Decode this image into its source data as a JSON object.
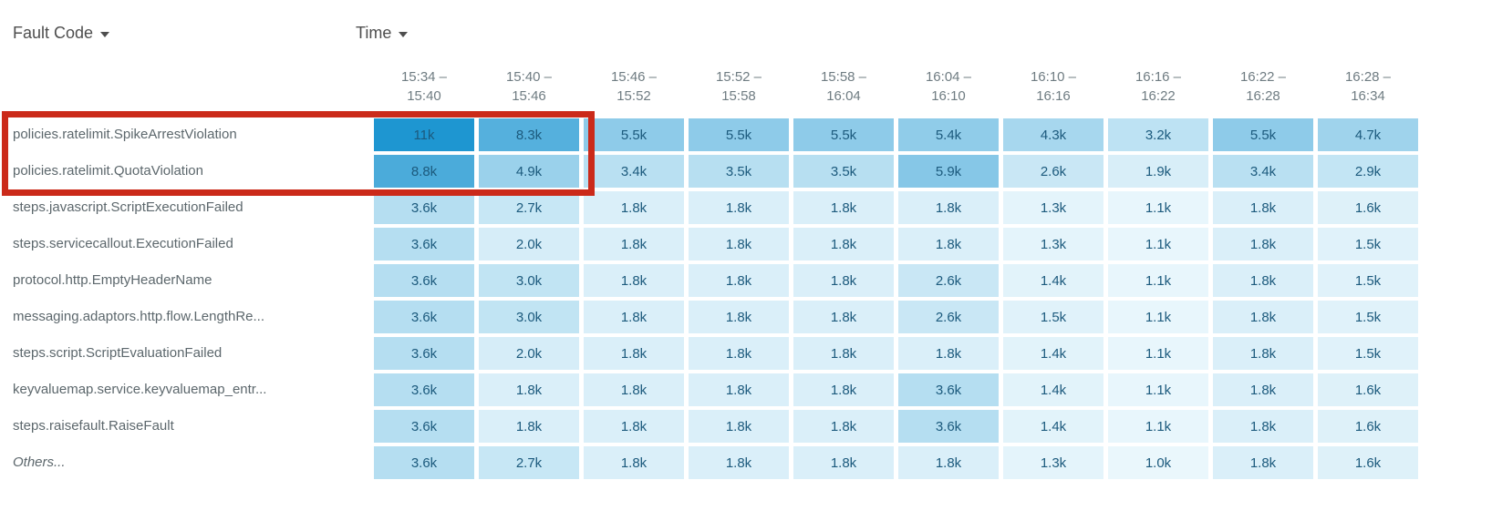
{
  "header": {
    "fault_code_label": "Fault Code",
    "time_label": "Time"
  },
  "chart_data": {
    "type": "heatmap",
    "x_label": "Time",
    "y_label": "Fault Code",
    "columns": [
      {
        "line1": "15:34 –",
        "line2": "15:40"
      },
      {
        "line1": "15:40 –",
        "line2": "15:46"
      },
      {
        "line1": "15:46 –",
        "line2": "15:52"
      },
      {
        "line1": "15:52 –",
        "line2": "15:58"
      },
      {
        "line1": "15:58 –",
        "line2": "16:04"
      },
      {
        "line1": "16:04 –",
        "line2": "16:10"
      },
      {
        "line1": "16:10 –",
        "line2": "16:16"
      },
      {
        "line1": "16:16 –",
        "line2": "16:22"
      },
      {
        "line1": "16:22 –",
        "line2": "16:28"
      },
      {
        "line1": "16:28 –",
        "line2": "16:34"
      }
    ],
    "rows": [
      {
        "label": "policies.ratelimit.SpikeArrestViolation",
        "italic": false,
        "values": [
          "11k",
          "8.3k",
          "5.5k",
          "5.5k",
          "5.5k",
          "5.4k",
          "4.3k",
          "3.2k",
          "5.5k",
          "4.7k"
        ]
      },
      {
        "label": "policies.ratelimit.QuotaViolation",
        "italic": false,
        "values": [
          "8.8k",
          "4.9k",
          "3.4k",
          "3.5k",
          "3.5k",
          "5.9k",
          "2.6k",
          "1.9k",
          "3.4k",
          "2.9k"
        ]
      },
      {
        "label": "steps.javascript.ScriptExecutionFailed",
        "italic": false,
        "values": [
          "3.6k",
          "2.7k",
          "1.8k",
          "1.8k",
          "1.8k",
          "1.8k",
          "1.3k",
          "1.1k",
          "1.8k",
          "1.6k"
        ]
      },
      {
        "label": "steps.servicecallout.ExecutionFailed",
        "italic": false,
        "values": [
          "3.6k",
          "2.0k",
          "1.8k",
          "1.8k",
          "1.8k",
          "1.8k",
          "1.3k",
          "1.1k",
          "1.8k",
          "1.5k"
        ]
      },
      {
        "label": "protocol.http.EmptyHeaderName",
        "italic": false,
        "values": [
          "3.6k",
          "3.0k",
          "1.8k",
          "1.8k",
          "1.8k",
          "2.6k",
          "1.4k",
          "1.1k",
          "1.8k",
          "1.5k"
        ]
      },
      {
        "label": "messaging.adaptors.http.flow.LengthRe...",
        "italic": false,
        "values": [
          "3.6k",
          "3.0k",
          "1.8k",
          "1.8k",
          "1.8k",
          "2.6k",
          "1.5k",
          "1.1k",
          "1.8k",
          "1.5k"
        ]
      },
      {
        "label": "steps.script.ScriptEvaluationFailed",
        "italic": false,
        "values": [
          "3.6k",
          "2.0k",
          "1.8k",
          "1.8k",
          "1.8k",
          "1.8k",
          "1.4k",
          "1.1k",
          "1.8k",
          "1.5k"
        ]
      },
      {
        "label": "keyvaluemap.service.keyvaluemap_entr...",
        "italic": false,
        "values": [
          "3.6k",
          "1.8k",
          "1.8k",
          "1.8k",
          "1.8k",
          "3.6k",
          "1.4k",
          "1.1k",
          "1.8k",
          "1.6k"
        ]
      },
      {
        "label": "steps.raisefault.RaiseFault",
        "italic": false,
        "values": [
          "3.6k",
          "1.8k",
          "1.8k",
          "1.8k",
          "1.8k",
          "3.6k",
          "1.4k",
          "1.1k",
          "1.8k",
          "1.6k"
        ]
      },
      {
        "label": "Others...",
        "italic": true,
        "values": [
          "3.6k",
          "2.7k",
          "1.8k",
          "1.8k",
          "1.8k",
          "1.8k",
          "1.3k",
          "1.0k",
          "1.8k",
          "1.6k"
        ]
      }
    ],
    "color_scale": {
      "low_value": 1.0,
      "high_value": 11.0,
      "unit": "k",
      "low_hex": "#eaf7fc",
      "high_hex": "#1e96d1"
    },
    "value_text_color": "#1c5a7d",
    "highlight_box": {
      "color": "#cb2a1a",
      "rows": [
        "policies.ratelimit.SpikeArrestViolation",
        "policies.ratelimit.QuotaViolation"
      ],
      "columns": [
        "15:34 – 15:40",
        "15:40 – 15:46"
      ]
    }
  }
}
